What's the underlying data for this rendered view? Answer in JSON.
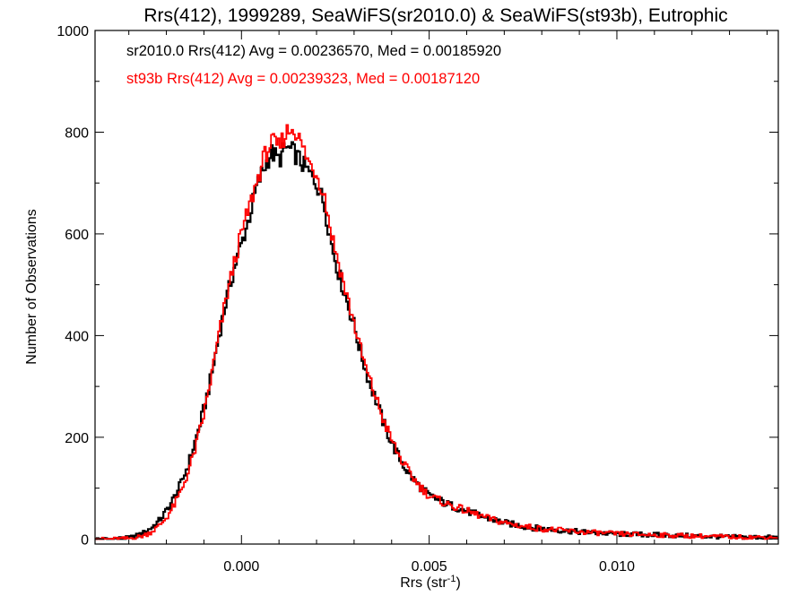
{
  "chart_data": {
    "type": "line",
    "style": "step-histogram",
    "title": "Rrs(412), 1999289, SeaWiFS(sr2010.0) & SeaWiFS(st93b), Eutrophic",
    "xlabel": "Rrs (str",
    "xlabel_sup": "-1",
    "xlabel_close": ")",
    "ylabel": "Number of Observations",
    "xlim": [
      -0.0039,
      0.0143
    ],
    "ylim": [
      -10,
      1000
    ],
    "xticks": [
      0.0,
      0.005,
      0.01
    ],
    "xtick_labels": [
      "0.000",
      "0.005",
      "0.010"
    ],
    "yticks": [
      0,
      200,
      400,
      600,
      800,
      1000
    ],
    "ytick_labels": [
      "0",
      "200",
      "400",
      "600",
      "800",
      "1000"
    ],
    "grid": false,
    "annotations": [
      {
        "text": "sr2010.0 Rrs(412) Avg = 0.00236570, Med = 0.00185920",
        "color": "#000000"
      },
      {
        "text": "st93b Rrs(412) Avg = 0.00239323, Med = 0.00187120",
        "color": "#ff0000"
      }
    ],
    "series": [
      {
        "name": "sr2010.0",
        "color": "#000000",
        "x": [
          -0.0039,
          -0.0035,
          -0.003,
          -0.0028,
          -0.0026,
          -0.0024,
          -0.0022,
          -0.002,
          -0.0018,
          -0.0016,
          -0.0014,
          -0.0012,
          -0.001,
          -0.0008,
          -0.0006,
          -0.0004,
          -0.0002,
          0.0,
          0.0002,
          0.0004,
          0.0006,
          0.0008,
          0.001,
          0.0012,
          0.0014,
          0.0016,
          0.0018,
          0.002,
          0.0022,
          0.0024,
          0.0026,
          0.0028,
          0.003,
          0.0032,
          0.0034,
          0.0036,
          0.0038,
          0.004,
          0.0042,
          0.0044,
          0.0046,
          0.0048,
          0.005,
          0.0055,
          0.006,
          0.0065,
          0.007,
          0.0075,
          0.008,
          0.009,
          0.01,
          0.011,
          0.012,
          0.013,
          0.0143
        ],
        "y": [
          0,
          0,
          2,
          6,
          12,
          22,
          35,
          55,
          80,
          110,
          150,
          200,
          255,
          320,
          400,
          470,
          530,
          580,
          630,
          690,
          730,
          760,
          745,
          770,
          760,
          740,
          720,
          700,
          660,
          580,
          520,
          470,
          420,
          360,
          310,
          270,
          225,
          190,
          160,
          135,
          115,
          100,
          85,
          68,
          55,
          42,
          32,
          25,
          20,
          14,
          10,
          8,
          6,
          4,
          3
        ]
      },
      {
        "name": "st93b",
        "color": "#ff0000",
        "x": [
          -0.0039,
          -0.0035,
          -0.003,
          -0.0028,
          -0.0026,
          -0.0024,
          -0.0022,
          -0.002,
          -0.0018,
          -0.0016,
          -0.0014,
          -0.0012,
          -0.001,
          -0.0008,
          -0.0006,
          -0.0004,
          -0.0002,
          0.0,
          0.0002,
          0.0004,
          0.0006,
          0.0008,
          0.001,
          0.0012,
          0.0014,
          0.0016,
          0.0018,
          0.002,
          0.0022,
          0.0024,
          0.0026,
          0.0028,
          0.003,
          0.0032,
          0.0034,
          0.0036,
          0.0038,
          0.004,
          0.0042,
          0.0044,
          0.0046,
          0.0048,
          0.005,
          0.0055,
          0.006,
          0.0065,
          0.007,
          0.0075,
          0.008,
          0.009,
          0.01,
          0.011,
          0.012,
          0.013,
          0.0143
        ],
        "y": [
          0,
          0,
          1,
          3,
          7,
          14,
          25,
          42,
          65,
          95,
          135,
          185,
          245,
          320,
          400,
          475,
          540,
          600,
          650,
          700,
          750,
          780,
          770,
          800,
          810,
          775,
          740,
          720,
          680,
          600,
          540,
          480,
          425,
          365,
          315,
          275,
          230,
          195,
          163,
          138,
          118,
          100,
          85,
          68,
          55,
          42,
          32,
          25,
          20,
          14,
          10,
          8,
          6,
          4,
          3
        ]
      }
    ]
  }
}
